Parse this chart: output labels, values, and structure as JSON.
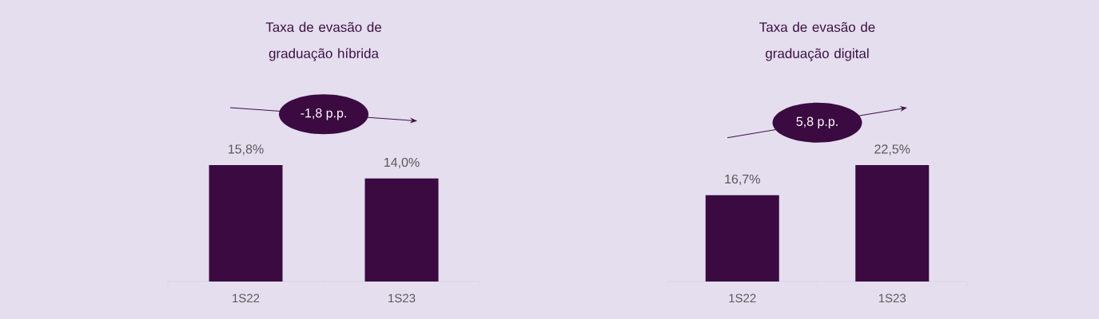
{
  "chart_data": [
    {
      "type": "bar",
      "title": "Taxa de evasão de graduação híbrida",
      "categories": [
        "1S22",
        "1S23"
      ],
      "values": [
        15.8,
        14.0
      ],
      "value_labels": [
        "15,8%",
        "14,0%"
      ],
      "color": "#3b0a40",
      "annotations": [
        "-1,8 p.p."
      ]
    },
    {
      "type": "bar",
      "title": "Taxa de evasão de graduação digital",
      "categories": [
        "1S22",
        "1S23"
      ],
      "values": [
        16.7,
        22.5
      ],
      "value_labels": [
        "16,7%",
        "22,5%"
      ],
      "color": "#3b0a40",
      "annotations": [
        "5,8 p.p."
      ]
    }
  ]
}
